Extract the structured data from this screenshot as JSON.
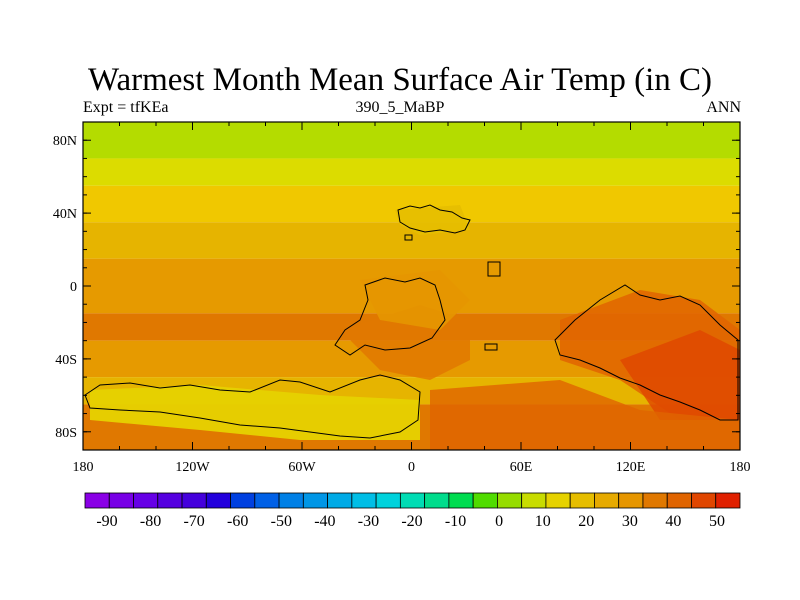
{
  "title": "Warmest Month Mean Surface Air Temp (in C)",
  "subtitle_left": "Expt = tfKEa",
  "subtitle_center": "390_5_MaBP",
  "subtitle_right": "ANN",
  "map": {
    "lon_range": [
      -180,
      180
    ],
    "lat_range": [
      -90,
      90
    ],
    "lat_ticks": [
      {
        "value": 80,
        "label": "80N"
      },
      {
        "value": 40,
        "label": "40N"
      },
      {
        "value": 0,
        "label": "0"
      },
      {
        "value": -40,
        "label": "40S"
      },
      {
        "value": -80,
        "label": "80S"
      }
    ],
    "lon_ticks": [
      {
        "value": -180,
        "label": "180"
      },
      {
        "value": -120,
        "label": "120W"
      },
      {
        "value": -60,
        "label": "60W"
      },
      {
        "value": 0,
        "label": "0"
      },
      {
        "value": 60,
        "label": "60E"
      },
      {
        "value": 120,
        "label": "120E"
      },
      {
        "value": 180,
        "label": "180"
      }
    ],
    "lat_bands": [
      {
        "from": 90,
        "to": 70,
        "color": "#b4dc00"
      },
      {
        "from": 70,
        "to": 55,
        "color": "#dcdc00"
      },
      {
        "from": 55,
        "to": 35,
        "color": "#f0c800"
      },
      {
        "from": 35,
        "to": 15,
        "color": "#e6b400"
      },
      {
        "from": 15,
        "to": -15,
        "color": "#e69a00"
      },
      {
        "from": -15,
        "to": -30,
        "color": "#e07800"
      },
      {
        "from": -30,
        "to": -50,
        "color": "#e69a00"
      },
      {
        "from": -50,
        "to": -65,
        "color": "#e6b400"
      },
      {
        "from": -65,
        "to": -90,
        "color": "#e07800"
      }
    ]
  },
  "colorbar": {
    "colors": [
      "#8a00e6",
      "#7800e6",
      "#6600e6",
      "#5500e0",
      "#4400dc",
      "#2200dc",
      "#0040e0",
      "#0060e6",
      "#0080e6",
      "#0096e6",
      "#00aae6",
      "#00bee6",
      "#00d2dc",
      "#00dcb4",
      "#00dc8c",
      "#00dc50",
      "#50dc00",
      "#96dc00",
      "#c8dc00",
      "#e6d200",
      "#e6be00",
      "#e6aa00",
      "#e69600",
      "#e07800",
      "#e06400",
      "#e04600",
      "#e02000"
    ],
    "labels": [
      "-90",
      "-80",
      "-70",
      "-60",
      "-50",
      "-40",
      "-30",
      "-20",
      "-10",
      "0",
      "10",
      "20",
      "30",
      "40",
      "50"
    ]
  }
}
